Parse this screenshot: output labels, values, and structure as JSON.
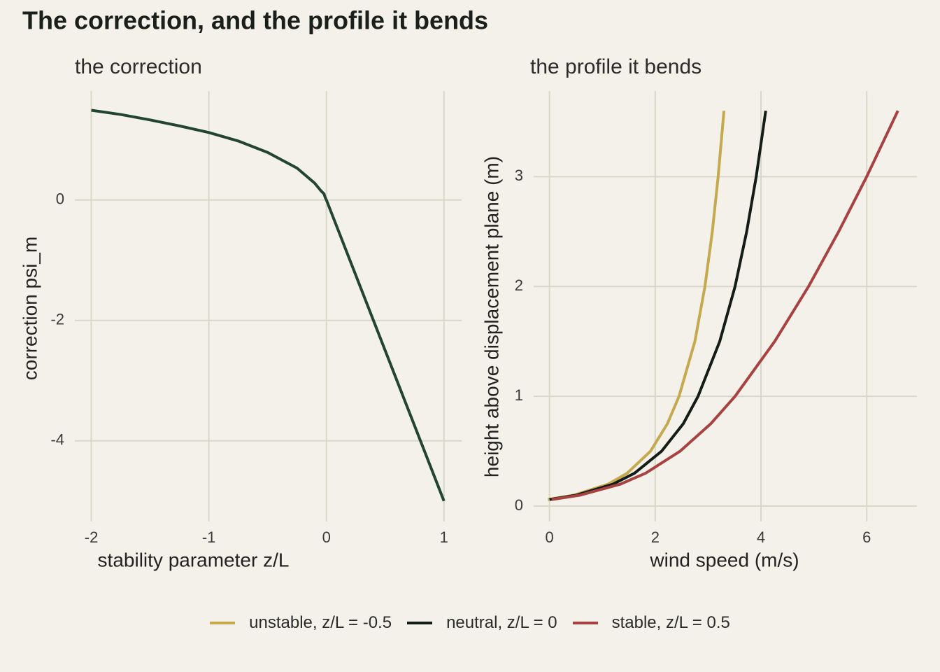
{
  "title": "The correction, and the profile it bends",
  "chart_data": [
    {
      "type": "line",
      "subtitle": "the correction",
      "x_label": "stability parameter z/L",
      "y_label": "correction psi_m",
      "x": [
        -2,
        -1.75,
        -1.5,
        -1.25,
        -1,
        -0.75,
        -0.5,
        -0.25,
        -0.1,
        -0.05,
        -0.02,
        -0.01,
        0,
        0.25,
        0.5,
        0.75,
        1
      ],
      "values": [
        1.49,
        1.42,
        1.33,
        1.23,
        1.12,
        0.98,
        0.79,
        0.53,
        0.28,
        0.16,
        0.1,
        0.04,
        0,
        -1.25,
        -2.5,
        -3.75,
        -5
      ],
      "color": "#234431",
      "xlim": [
        -2.14,
        1.15
      ],
      "ylim": [
        -5.34,
        1.81
      ],
      "xticks": [
        -2,
        -1,
        0,
        1
      ],
      "yticks": [
        -4,
        -2,
        0
      ],
      "grid": true
    },
    {
      "type": "line",
      "subtitle": "the profile it bends",
      "x_label": "wind speed (m/s)",
      "y_label": "height above displacement plane (m)",
      "series": [
        {
          "name": "unstable, z/L = -0.5",
          "color": "#c4a94f",
          "x": [
            -0.03,
            0.46,
            1.11,
            1.47,
            1.91,
            2.23,
            2.45,
            2.75,
            2.94,
            3.08,
            3.19,
            3.3
          ],
          "values": [
            0.06,
            0.1,
            0.2,
            0.3,
            0.5,
            0.75,
            1,
            1.5,
            2,
            2.5,
            3,
            3.6
          ]
        },
        {
          "name": "neutral, z/L = 0",
          "color": "#141c18",
          "x": [
            0,
            0.51,
            1.2,
            1.61,
            2.12,
            2.53,
            2.81,
            3.22,
            3.51,
            3.73,
            3.91,
            4.09
          ],
          "values": [
            0.06,
            0.1,
            0.2,
            0.3,
            0.5,
            0.75,
            1,
            1.5,
            2,
            2.5,
            3,
            3.6
          ]
        },
        {
          "name": "stable, z/L = 0.5",
          "color": "#a84242",
          "x": [
            0.04,
            0.58,
            1.34,
            1.82,
            2.47,
            3.05,
            3.51,
            4.26,
            4.9,
            5.47,
            6.0,
            6.59
          ],
          "values": [
            0.06,
            0.1,
            0.2,
            0.3,
            0.5,
            0.75,
            1,
            1.5,
            2,
            2.5,
            3,
            3.6
          ]
        }
      ],
      "xlim": [
        -0.3,
        6.95
      ],
      "ylim": [
        -0.14,
        3.78
      ],
      "xticks": [
        0,
        2,
        4,
        6
      ],
      "yticks": [
        0,
        1,
        2,
        3
      ],
      "grid": true,
      "legend": "bottom"
    }
  ]
}
